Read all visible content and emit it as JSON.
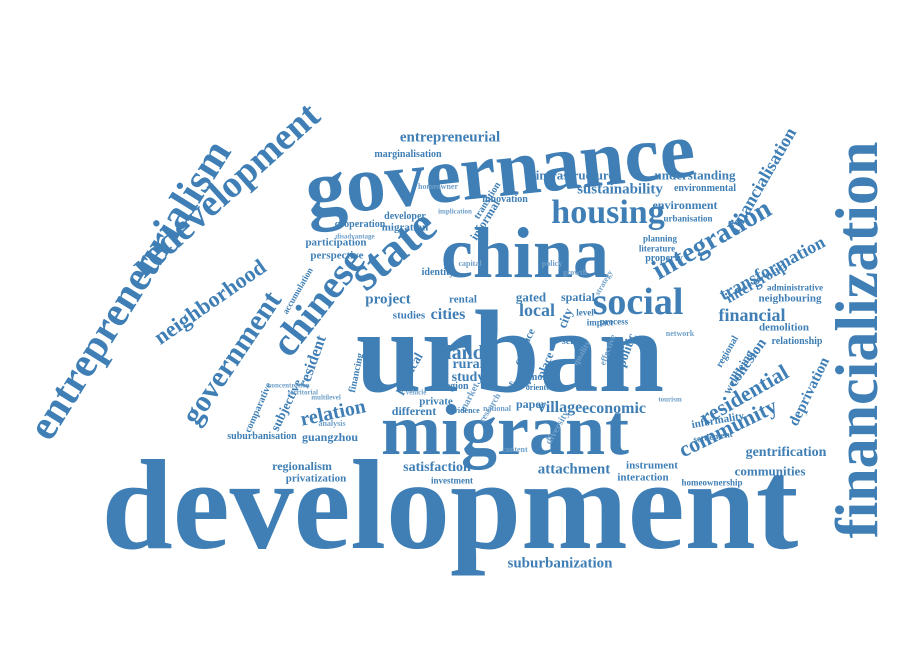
{
  "palette": {
    "primary": "#3f7fb5",
    "light": "#6f9fc9"
  },
  "words": [
    "development",
    "urban",
    "governance",
    "migrant",
    "china",
    "financialization",
    "entrepreneurialism",
    "redevelopment",
    "housing",
    "state",
    "chinese",
    "government",
    "social",
    "integration",
    "neighborhood",
    "community",
    "financialisation",
    "residential",
    "transformation",
    "financial",
    "land",
    "local",
    "relation",
    "resident",
    "village",
    "economic",
    "gentrification",
    "deprivation",
    "cities",
    "project",
    "entrepreneurial",
    "sustainability",
    "understanding",
    "infrastructure",
    "environment",
    "environmental",
    "marginalisation",
    "suburbanization",
    "suburbanisation",
    "regionalism",
    "privatization",
    "satisfaction",
    "attachment",
    "communities",
    "cohesion",
    "intergroup",
    "neighbouring",
    "demolition",
    "relationship",
    "administrative",
    "informality",
    "settlement",
    "homeownership",
    "interaction",
    "instrument",
    "guangzhou",
    "subjective",
    "comparative",
    "study",
    "rural",
    "paper",
    "private",
    "different",
    "studies",
    "gated",
    "spatial",
    "rental",
    "case",
    "place",
    "city",
    "scale",
    "region",
    "political",
    "politic",
    "participation",
    "perspective",
    "migration",
    "developer",
    "cooperation",
    "informal",
    "transition",
    "innovation",
    "identity",
    "accumulation",
    "wellbeing",
    "regional",
    "financing",
    "market",
    "investment",
    "effective",
    "diversity",
    "quality",
    "sense",
    "content",
    "process",
    "impact",
    "level",
    "analysis",
    "multilevel",
    "vehicle",
    "tourism",
    "space",
    "more",
    "oriented",
    "national",
    "research",
    "evidence",
    "urbanisation",
    "planning",
    "literature",
    "property",
    "homeowner",
    "disadvantage",
    "implication",
    "concentration",
    "territorial",
    "capital",
    "strategy",
    "growth",
    "policy",
    "network"
  ]
}
